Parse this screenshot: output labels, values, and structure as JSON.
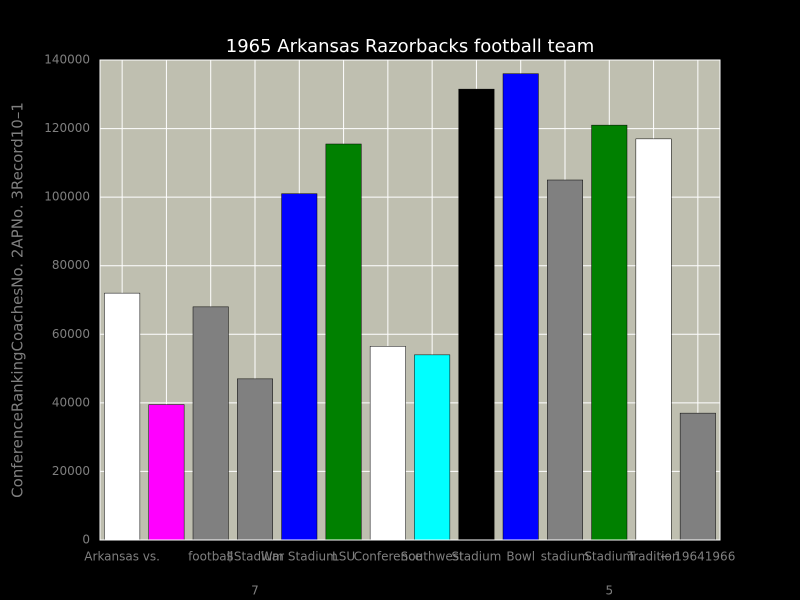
{
  "chart_data": {
    "type": "bar",
    "title": "1965 Arkansas Razorbacks football team",
    "ylabel": "ConferenceRankingCoachesNo. 2APNo. 3Record10–1",
    "categories": [
      "Arkansas vs.",
      null,
      "football",
      "$Stadium",
      "War Stadium",
      "LSU",
      "Conference",
      "Southwest",
      "Stadium",
      "Bowl",
      "stadium",
      "Stadium",
      "Tradition",
      "← 19641966"
    ],
    "sublabels": [
      null,
      null,
      null,
      "7",
      null,
      null,
      null,
      null,
      null,
      null,
      null,
      "5",
      null,
      null
    ],
    "values": [
      72000,
      39500,
      68000,
      47000,
      101000,
      115500,
      56500,
      54000,
      131500,
      136000,
      105000,
      121000,
      117000,
      37000
    ],
    "colors": [
      "#ffffff",
      "#ff00ff",
      "#808080",
      "#808080",
      "#0000ff",
      "#008000",
      "#ffffff",
      "#00ffff",
      "#000000",
      "#0000ff",
      "#808080",
      "#008000",
      "#ffffff",
      "#808080"
    ],
    "ylim": [
      0,
      140000
    ],
    "yticks": [
      0,
      20000,
      40000,
      60000,
      80000,
      100000,
      120000,
      140000
    ],
    "grid": true
  }
}
